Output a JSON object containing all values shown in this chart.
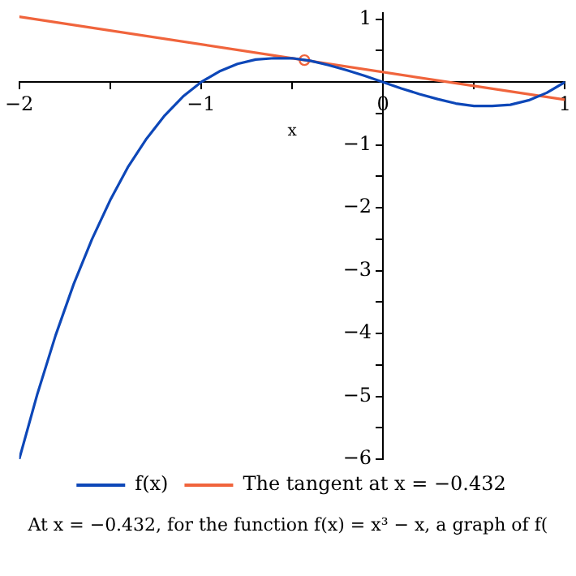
{
  "chart_data": {
    "type": "line",
    "xlabel": "x",
    "annotations": [
      "At x = −0.432, for the function f(x) = x³ − x, a graph of f("
    ],
    "xlim": [
      -2,
      1
    ],
    "xticks": [
      -2,
      {
        "value": -1.5,
        "label": null
      },
      -1,
      {
        "value": -0.5,
        "label": null
      },
      0,
      {
        "value": 0.5,
        "label": null
      },
      1
    ],
    "ylim": [
      -6,
      1.1
    ],
    "yticks": [
      -6,
      {
        "value": -5.5,
        "label": null
      },
      -5,
      {
        "value": -4.5,
        "label": null
      },
      -4,
      {
        "value": -3.5,
        "label": null
      },
      -3,
      {
        "value": -2.5,
        "label": null
      },
      -2,
      {
        "value": -1.5,
        "label": null
      },
      -1,
      {
        "value": -0.5,
        "label": null
      },
      {
        "value": 0,
        "label": null
      },
      {
        "value": 0.5,
        "label": null
      },
      1
    ],
    "grid": false,
    "legend": "bottom",
    "marker": "none",
    "series": [
      {
        "name": "f(x)",
        "color": "#0d47b8",
        "x": [
          -2,
          -1.9,
          -1.8,
          -1.7,
          -1.6,
          -1.5,
          -1.4,
          -1.3,
          -1.2,
          -1.1,
          -1,
          -0.9,
          -0.8,
          -0.7,
          -0.6,
          -0.5,
          -0.4,
          -0.3,
          -0.2,
          -0.1,
          0,
          0.1,
          0.2,
          0.3,
          0.4,
          0.5,
          0.6,
          0.7,
          0.8,
          0.9,
          1
        ],
        "values": [
          -6,
          -4.96,
          -4.03,
          -3.21,
          -2.5,
          -1.88,
          -1.34,
          -0.9,
          -0.53,
          -0.23,
          0,
          0.17,
          0.29,
          0.36,
          0.38,
          0.38,
          0.34,
          0.27,
          0.19,
          0.1,
          0,
          -0.1,
          -0.19,
          -0.27,
          -0.34,
          -0.38,
          -0.38,
          -0.36,
          -0.29,
          -0.17,
          0
        ]
      },
      {
        "name": "The tangent at x = −0.432",
        "color": "#f0643c",
        "x": [
          -2,
          1
        ],
        "values": [
          1.04,
          -0.28
        ]
      },
      {
        "type": "scatter",
        "color": "#f0643c",
        "marker": "circle",
        "x": [
          -0.432
        ],
        "values": [
          0.35
        ]
      }
    ]
  }
}
